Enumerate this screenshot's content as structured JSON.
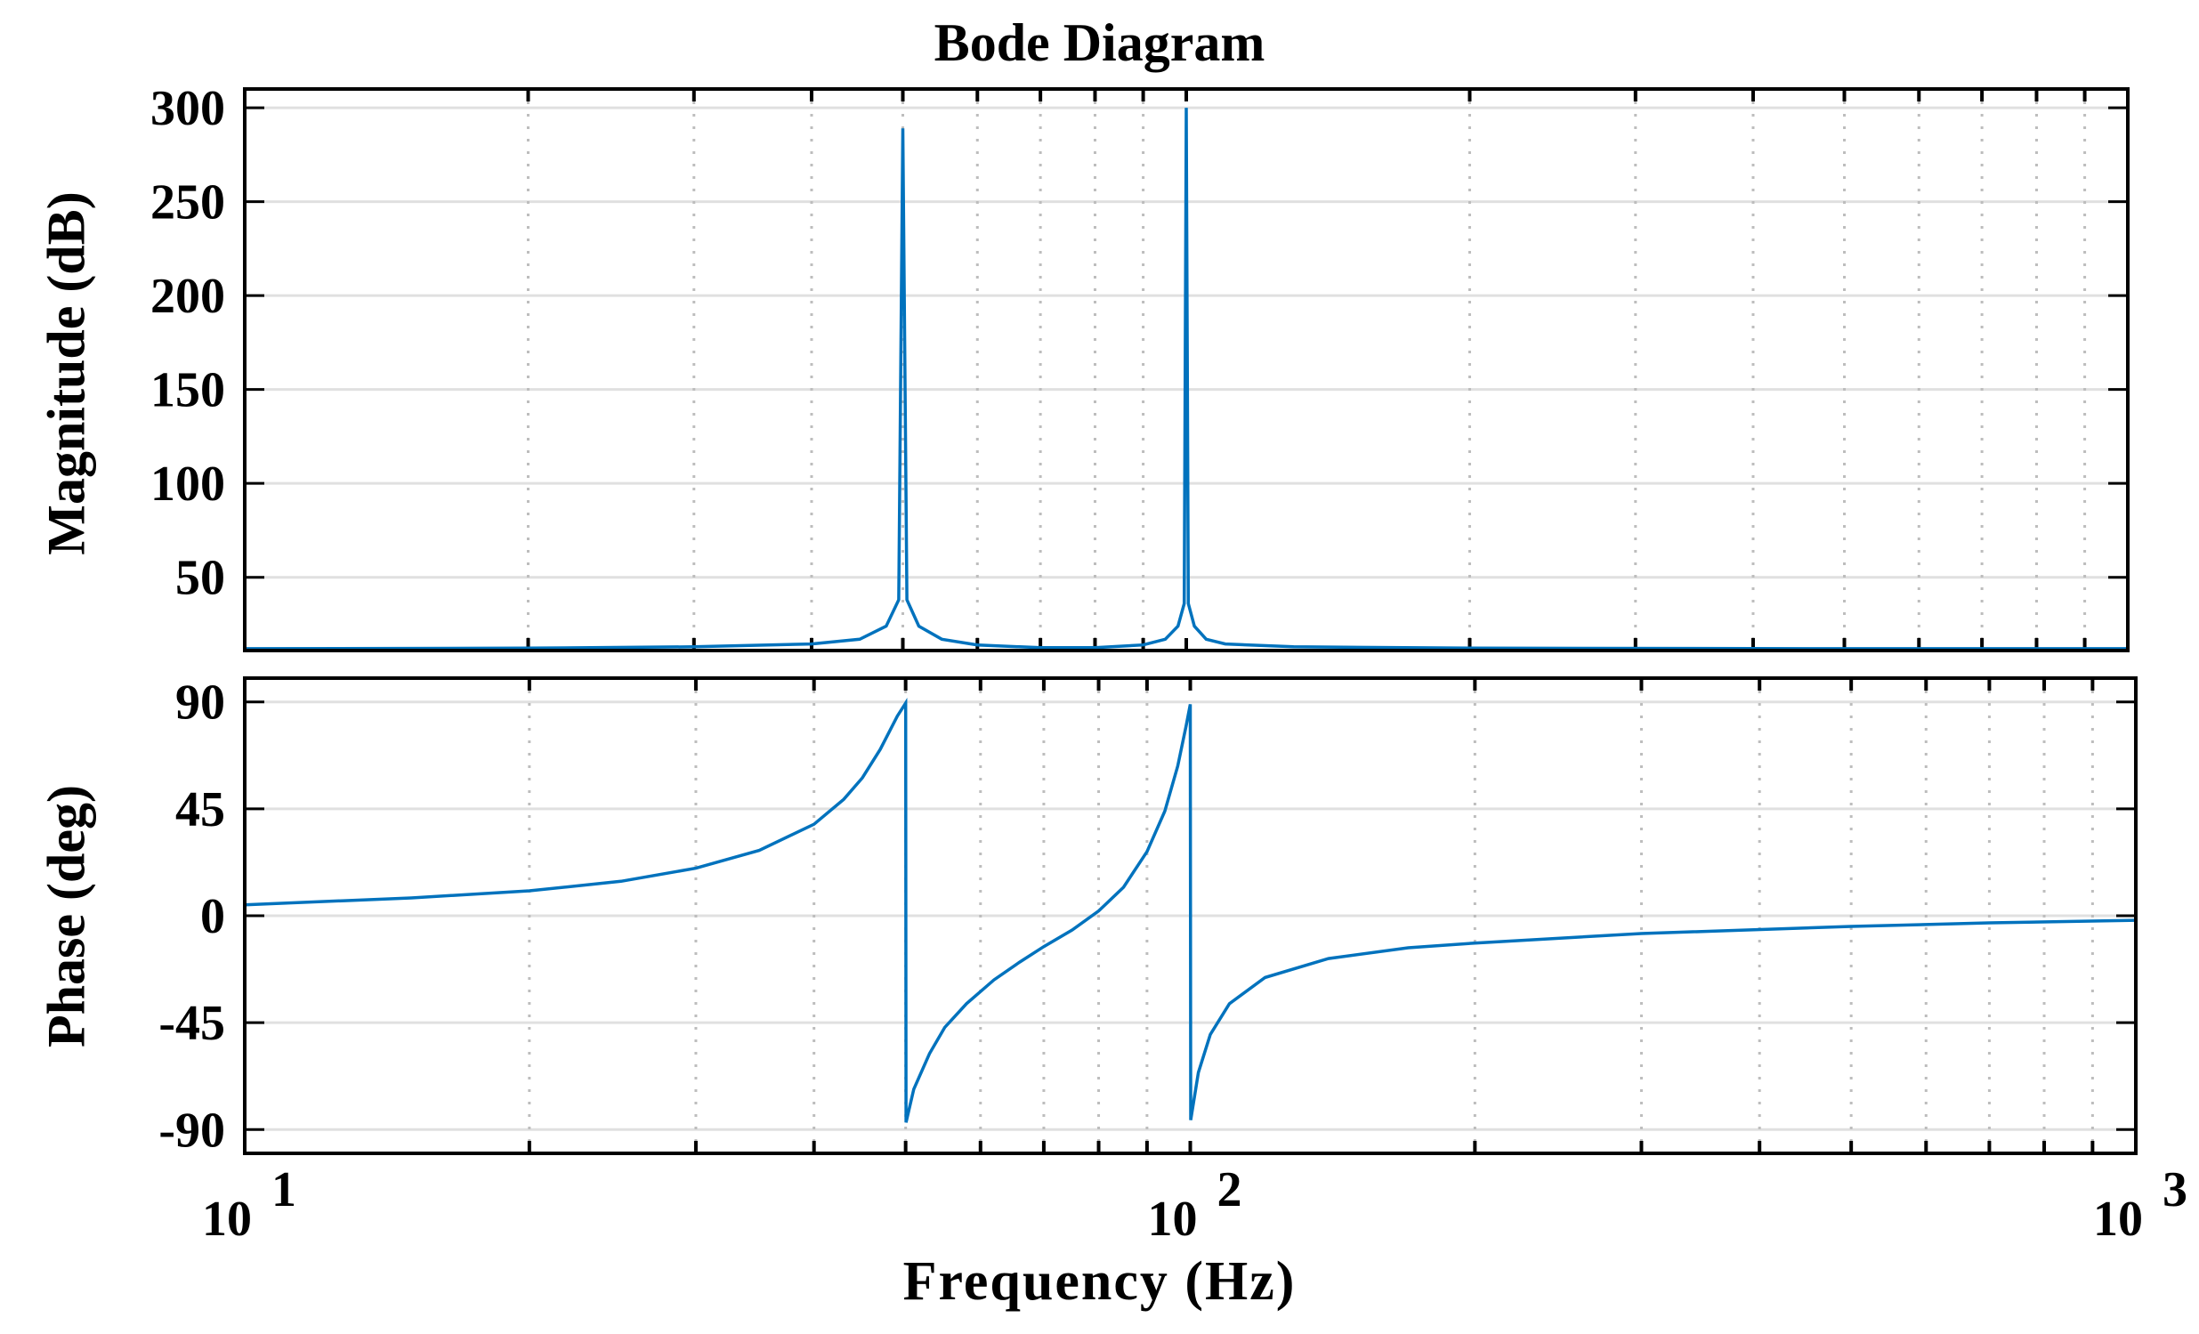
{
  "chart": {
    "title": "Bode Diagram",
    "xlabel": "Frequency (Hz)",
    "mag_ylabel": "Magnitude (dB)",
    "phase_ylabel": "Phase (deg)",
    "line_color": "#0072BD",
    "grid_color": "#e0e0e0"
  },
  "chart_data": [
    {
      "type": "line",
      "title": "Bode Diagram",
      "panel": "magnitude",
      "xlabel": "Frequency (Hz)",
      "ylabel": "Magnitude (dB)",
      "xscale": "log",
      "xlim": [
        10,
        1000
      ],
      "ylim": [
        11,
        310
      ],
      "x_ticks": [
        "10^1",
        "10^2",
        "10^3"
      ],
      "y_ticks": [
        50,
        100,
        150,
        200,
        250,
        300
      ],
      "grid": true,
      "series": [
        {
          "name": "Magnitude",
          "x": [
            10,
            20,
            30,
            40,
            45,
            48,
            49.5,
            50,
            50.5,
            52,
            55,
            60,
            70,
            80,
            90,
            95,
            98,
            99.5,
            100,
            100.5,
            102,
            105,
            110,
            130,
            200,
            500,
            1000
          ],
          "values": [
            12,
            12.3,
            13,
            14.5,
            17,
            24,
            38,
            289,
            38,
            24,
            17,
            14,
            12.5,
            12.5,
            14,
            17,
            24,
            36,
            300,
            36,
            24,
            17,
            14.5,
            13,
            12.3,
            12,
            12
          ]
        }
      ]
    },
    {
      "type": "line",
      "panel": "phase",
      "xlabel": "Frequency (Hz)",
      "ylabel": "Phase (deg)",
      "xscale": "log",
      "xlim": [
        10,
        1000
      ],
      "ylim": [
        -100,
        100
      ],
      "x_ticks": [
        "10^1",
        "10^2",
        "10^3"
      ],
      "y_ticks": [
        90,
        45,
        0,
        -45,
        -90
      ],
      "grid": true,
      "series": [
        {
          "name": "Phase",
          "x": [
            10,
            15,
            20,
            25,
            30,
            35,
            40,
            43,
            45,
            47,
            49,
            50,
            50.05,
            51,
            53,
            55,
            58,
            62,
            66,
            70,
            75,
            80,
            85,
            90,
            94,
            97,
            99,
            100,
            100.1,
            102,
            105,
            110,
            120,
            140,
            170,
            200,
            300,
            500,
            700,
            1000
          ],
          "values": [
            4.6,
            7.5,
            10.5,
            14.5,
            20,
            27.5,
            38.5,
            49,
            58,
            70,
            84,
            89.5,
            -87,
            -73,
            -58,
            -47,
            -37,
            -27,
            -19.5,
            -13,
            -6,
            2,
            12,
            27,
            44,
            63,
            80,
            89,
            -86,
            -66,
            -50,
            -37,
            -26,
            -18,
            -13.5,
            -11.5,
            -7.5,
            -4.5,
            -3,
            -1.9
          ]
        }
      ]
    }
  ]
}
